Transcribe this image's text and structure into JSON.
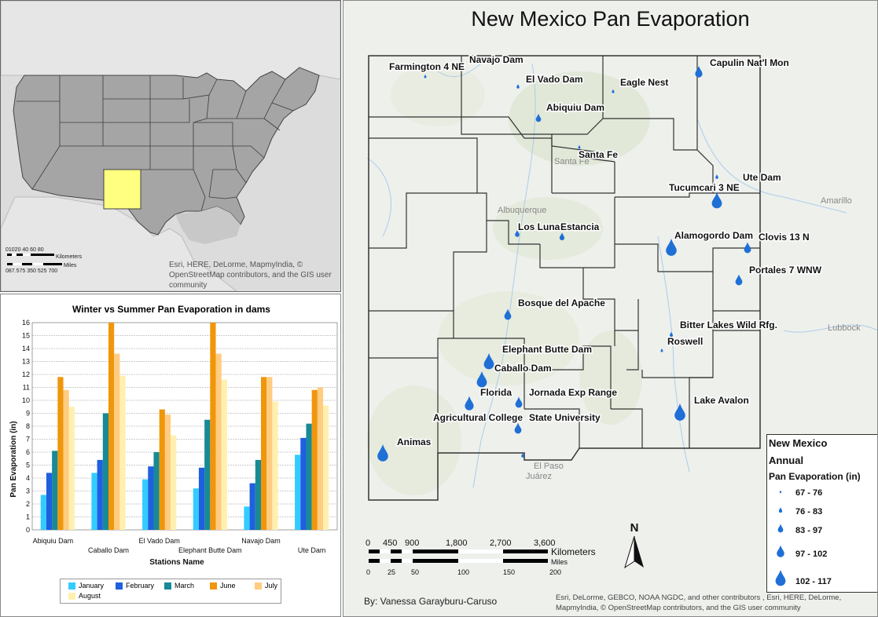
{
  "main_map": {
    "title": "New Mexico Pan Evaporation",
    "stations": [
      {
        "name": "Farmington 4 NE"
      },
      {
        "name": "Navajo Dam"
      },
      {
        "name": "El Vado Dam"
      },
      {
        "name": "Eagle Nest"
      },
      {
        "name": "Capulin Nat'l Mon"
      },
      {
        "name": "Abiquiu Dam"
      },
      {
        "name": "Santa Fe"
      },
      {
        "name": "Ute Dam"
      },
      {
        "name": "Tucumcari 3 NE"
      },
      {
        "name": "Los Lunas"
      },
      {
        "name": "Estancia"
      },
      {
        "name": "Alamogordo Dam"
      },
      {
        "name": "Clovis 13 N"
      },
      {
        "name": "Portales 7 WNW"
      },
      {
        "name": "Bosque del Apache"
      },
      {
        "name": "Bitter Lakes Wild Rfg."
      },
      {
        "name": "Roswell"
      },
      {
        "name": "Elephant Butte Dam"
      },
      {
        "name": "Caballo Dam"
      },
      {
        "name": "Florida"
      },
      {
        "name": "Jornada Exp Range"
      },
      {
        "name": "Agricultural College"
      },
      {
        "name": "State University"
      },
      {
        "name": "Animas"
      },
      {
        "name": "Lake Avalon"
      }
    ],
    "cities": [
      "Santa Fe",
      "Albuquerque",
      "Amarillo",
      "Lubbock",
      "El Paso",
      "Juárez"
    ],
    "legend": {
      "title1": "New Mexico",
      "title2": "Annual",
      "title3": "Pan Evaporation (in)",
      "classes": [
        "67 - 76",
        "76 - 83",
        "83 - 97",
        "97 - 102",
        "102 - 117"
      ],
      "symbol_color": "#1f6fd6"
    },
    "scale_km": {
      "labels": [
        "0",
        "450",
        "900",
        "1,800",
        "2,700",
        "3,600"
      ],
      "unit": "Kilometers"
    },
    "scale_mi": {
      "labels": [
        "0",
        "25",
        "50",
        "100",
        "150",
        "200"
      ],
      "unit": "Miles"
    },
    "north": "N",
    "author": "By: Vanessa Garayburu-Caruso",
    "credit": "Esri, DeLorme, GEBCO, NOAA NGDC, and other contributors , Esri, HERE, DeLorme, MapmyIndia, © OpenStreetMap contributors, and the GIS user community"
  },
  "inset_map": {
    "scale_km_labels": "01020 40 60 80",
    "scale_km_unit": "Kilometers",
    "scale_mi_labels": "087.575 350 525 700",
    "scale_mi_unit": "Miles",
    "credit": "Esri, HERE, DeLorme, MapmyIndia, © OpenStreetMap contributors, and the GIS user community",
    "highlight_color": "#ffff80"
  },
  "chart_data": {
    "type": "bar",
    "title": "Winter vs Summer Pan Evaporation in dams",
    "xlabel": "Stations Name",
    "ylabel": "Pan Evaporation (in)",
    "ylim": [
      0,
      16
    ],
    "yticks": [
      0,
      1,
      2,
      3,
      4,
      5,
      6,
      7,
      8,
      9,
      10,
      11,
      12,
      13,
      14,
      15,
      16
    ],
    "categories": [
      "Abiquiu Dam",
      "Caballo Dam",
      "El Vado Dam",
      "Elephant Butte Dam",
      "Navajo Dam",
      "Ute Dam"
    ],
    "series": [
      {
        "name": "January",
        "color": "#33ccff",
        "values": [
          2.7,
          4.4,
          3.9,
          3.2,
          1.8,
          5.8
        ]
      },
      {
        "name": "February",
        "color": "#1f5fe0",
        "values": [
          4.4,
          5.4,
          4.9,
          4.8,
          3.6,
          7.1
        ]
      },
      {
        "name": "March",
        "color": "#178a96",
        "values": [
          6.1,
          9.0,
          6.0,
          8.5,
          5.4,
          8.2
        ]
      },
      {
        "name": "June",
        "color": "#f0960a",
        "values": [
          11.8,
          16.2,
          9.3,
          16.2,
          11.8,
          10.8
        ]
      },
      {
        "name": "July",
        "color": "#ffcc80",
        "values": [
          10.8,
          13.6,
          8.9,
          13.6,
          11.8,
          11.0
        ]
      },
      {
        "name": "August",
        "color": "#fff0b0",
        "values": [
          9.5,
          11.9,
          7.3,
          11.6,
          9.9,
          9.6
        ]
      }
    ],
    "grid": true,
    "legend_position": "bottom"
  }
}
